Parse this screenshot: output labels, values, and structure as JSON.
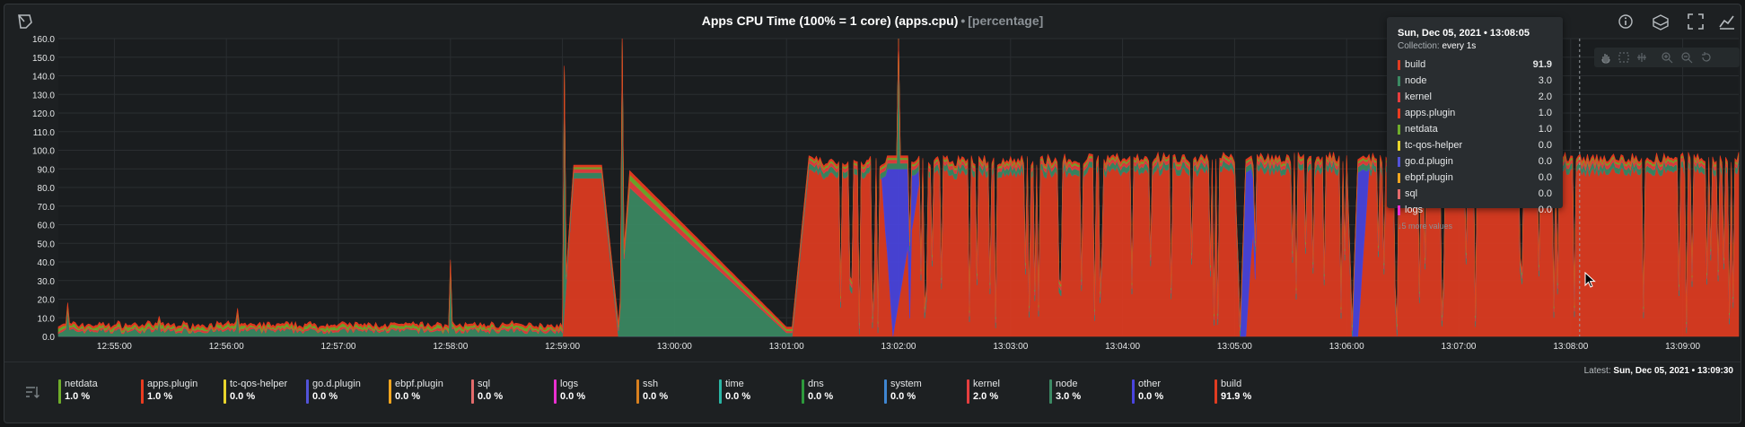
{
  "header": {
    "title": "Apps CPU Time (100% = 1 core) (apps.cpu)",
    "separator": "•",
    "units": "[percentage]"
  },
  "icons": {
    "left": "chart-logo-icon",
    "right": [
      "info-icon",
      "dashboard-add-icon",
      "fullscreen-icon",
      "chart-type-icon"
    ]
  },
  "toolbar": [
    "pan-icon",
    "highlight-icon",
    "select-icon",
    "zoom-in-icon",
    "zoom-out-icon",
    "reset-icon"
  ],
  "latest": {
    "label": "Latest:",
    "value": "Sun, Dec 05, 2021 • 13:09:30"
  },
  "tooltip": {
    "time": "Sun, Dec 05, 2021 • 13:08:05",
    "collection_label": "Collection:",
    "collection_value": "every 1s",
    "rows": [
      {
        "name": "build",
        "value": "91.9",
        "color": "#e03c21"
      },
      {
        "name": "node",
        "value": "3.0",
        "color": "#3b8a63"
      },
      {
        "name": "kernel",
        "value": "2.0",
        "color": "#e63e3e"
      },
      {
        "name": "apps.plugin",
        "value": "1.0",
        "color": "#ea3b1f"
      },
      {
        "name": "netdata",
        "value": "1.0",
        "color": "#6fad2a"
      },
      {
        "name": "tc-qos-helper",
        "value": "0.0",
        "color": "#e8d42c"
      },
      {
        "name": "go.d.plugin",
        "value": "0.0",
        "color": "#5253d9"
      },
      {
        "name": "ebpf.plugin",
        "value": "0.0",
        "color": "#f0a51f"
      },
      {
        "name": "sql",
        "value": "0.0",
        "color": "#e36b6b"
      },
      {
        "name": "logs",
        "value": "0.0",
        "color": "#e92fd0"
      }
    ],
    "more": "↓5 more values"
  },
  "legend": [
    {
      "name": "netdata",
      "value": "1.0 %",
      "color": "#6fad2a"
    },
    {
      "name": "apps.plugin",
      "value": "1.0 %",
      "color": "#ea3b1f"
    },
    {
      "name": "tc-qos-helper",
      "value": "0.0 %",
      "color": "#e8d42c"
    },
    {
      "name": "go.d.plugin",
      "value": "0.0 %",
      "color": "#5253d9"
    },
    {
      "name": "ebpf.plugin",
      "value": "0.0 %",
      "color": "#f0a51f"
    },
    {
      "name": "sql",
      "value": "0.0 %",
      "color": "#e36b6b"
    },
    {
      "name": "logs",
      "value": "0.0 %",
      "color": "#e92fd0"
    },
    {
      "name": "ssh",
      "value": "0.0 %",
      "color": "#d8801e"
    },
    {
      "name": "time",
      "value": "0.0 %",
      "color": "#2ab5a4"
    },
    {
      "name": "dns",
      "value": "0.0 %",
      "color": "#2d9a3b"
    },
    {
      "name": "system",
      "value": "0.0 %",
      "color": "#3f86d2"
    },
    {
      "name": "kernel",
      "value": "2.0 %",
      "color": "#e63e3e"
    },
    {
      "name": "node",
      "value": "3.0 %",
      "color": "#3b8a63"
    },
    {
      "name": "other",
      "value": "0.0 %",
      "color": "#4a44e0"
    },
    {
      "name": "build",
      "value": "91.9 %",
      "color": "#e03c21"
    }
  ],
  "chart_data": {
    "type": "area",
    "stacked": true,
    "title": "Apps CPU Time (100% = 1 core) (apps.cpu)",
    "ylabel": "percentage",
    "ylim": [
      0,
      160
    ],
    "yticks": [
      "0.0",
      "10.0",
      "20.0",
      "30.0",
      "40.0",
      "50.0",
      "60.0",
      "70.0",
      "80.0",
      "90.0",
      "100.0",
      "110.0",
      "120.0",
      "130.0",
      "140.0",
      "150.0",
      "160.0"
    ],
    "x_range": [
      "12:54:30",
      "13:09:30"
    ],
    "xticks": [
      "12:55:00",
      "12:56:00",
      "12:57:00",
      "12:58:00",
      "12:59:00",
      "13:00:00",
      "13:01:00",
      "13:02:00",
      "13:03:00",
      "13:04:00",
      "13:05:00",
      "13:06:00",
      "13:07:00",
      "13:08:00",
      "13:09:00"
    ],
    "x_minutes": [
      0,
      4,
      4.5,
      4.6,
      4.85,
      5.0,
      5.1,
      6.5,
      6.55,
      6.7,
      7.35,
      7.45,
      7.7,
      10.0,
      10.5,
      10.55,
      10.6,
      10.7,
      11.5,
      11.55,
      11.6,
      11.7,
      15.0
    ],
    "series": [
      {
        "name": "build",
        "values": [
          0,
          0,
          0,
          85,
          85,
          0,
          0,
          0,
          0,
          90,
          90,
          0,
          90,
          92,
          92,
          0,
          0,
          92,
          92,
          0,
          0,
          92,
          92
        ]
      },
      {
        "name": "other",
        "values": [
          0,
          0,
          0,
          0,
          0,
          0,
          0,
          0,
          0,
          0,
          0,
          90,
          0,
          0,
          0,
          0,
          88,
          0,
          0,
          0,
          88,
          0,
          0
        ]
      },
      {
        "name": "node",
        "values": [
          2,
          2,
          2,
          3,
          3,
          3,
          80,
          2,
          2,
          3,
          3,
          3,
          3,
          3,
          3,
          3,
          3,
          3,
          3,
          3,
          3,
          3,
          3
        ]
      },
      {
        "name": "kernel",
        "values": [
          1,
          1,
          1,
          2,
          2,
          2,
          4,
          1,
          1,
          2,
          2,
          2,
          2,
          2,
          2,
          2,
          2,
          2,
          2,
          2,
          2,
          2,
          2
        ]
      },
      {
        "name": "netdata",
        "values": [
          1,
          1,
          1,
          1,
          1,
          1,
          3,
          1,
          1,
          1,
          1,
          1,
          1,
          1,
          1,
          1,
          1,
          1,
          1,
          1,
          1,
          1,
          1
        ]
      },
      {
        "name": "apps.plugin",
        "values": [
          1,
          1,
          1,
          1,
          1,
          1,
          2,
          1,
          1,
          1,
          1,
          1,
          1,
          1,
          1,
          1,
          1,
          1,
          1,
          1,
          1,
          1,
          1
        ]
      }
    ],
    "highlight_time": "13:08:05"
  }
}
